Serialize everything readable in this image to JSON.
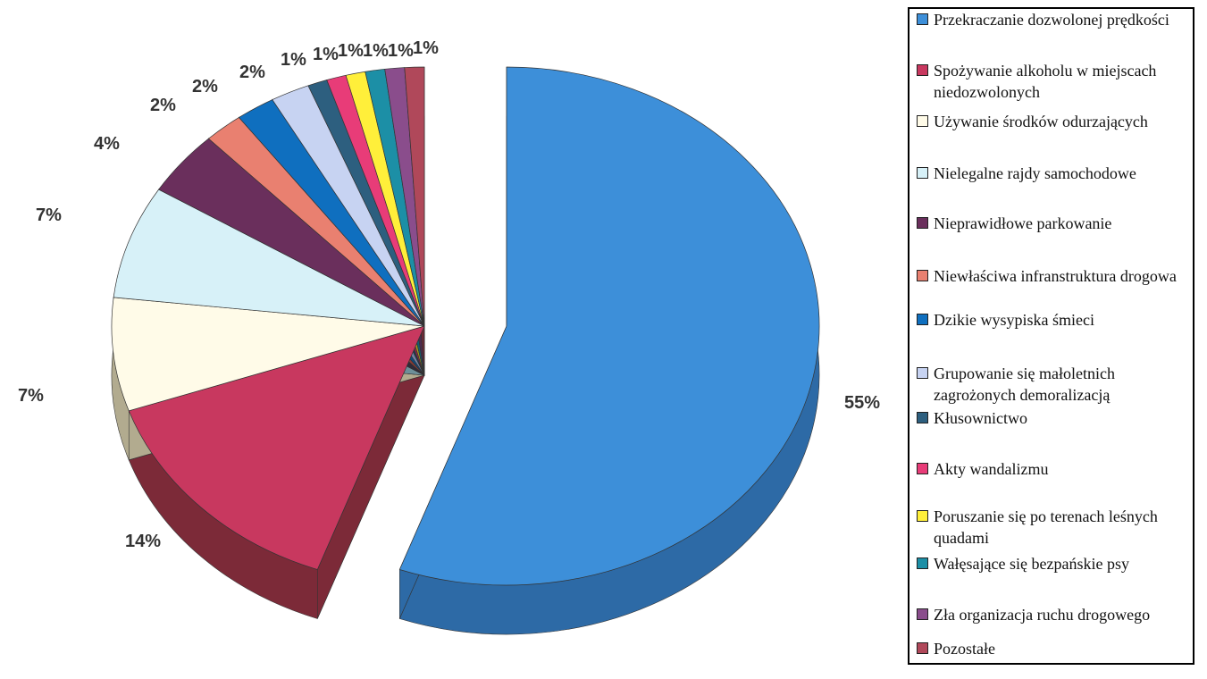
{
  "chart_data": {
    "type": "pie",
    "style": "3d-exploded",
    "legend_position": "right",
    "slices": [
      {
        "label": "Przekraczanie dozwolonej prędkości",
        "value": 55,
        "display": "55%",
        "color": "#3d8fd9",
        "side_color": "#2d6aa6"
      },
      {
        "label": "Spożywanie alkoholu w miejscach niedozwolonych",
        "value": 14,
        "display": "14%",
        "color": "#c8385f",
        "side_color": "#7c2a38"
      },
      {
        "label": "Używanie środków odurzających",
        "value": 7,
        "display": "7%",
        "color": "#fffbe8",
        "side_color": "#b2ab8f"
      },
      {
        "label": "Nielegalne rajdy samochodowe",
        "value": 7,
        "display": "7%",
        "color": "#d7f1f8",
        "side_color": "#6d9099"
      },
      {
        "label": "Nieprawidłowe parkowanie",
        "value": 4,
        "display": "4%",
        "color": "#6a2f5c",
        "side_color": "#2f2a38"
      },
      {
        "label": "Niewłaściwa infranstruktura drogowa",
        "value": 2,
        "display": "2%",
        "color": "#e98070",
        "side_color": "#8c3b34"
      },
      {
        "label": "Dzikie wysypiska śmieci",
        "value": 2,
        "display": "2%",
        "color": "#0f6fbf",
        "side_color": "#0d4a7c"
      },
      {
        "label": "Grupowanie się małoletnich zagrożonych demoralizacją",
        "value": 2,
        "display": "2%",
        "color": "#c7d3f2",
        "side_color": "#7482a3"
      },
      {
        "label": "Kłusownictwo",
        "value": 1,
        "display": "1%",
        "color": "#2d5f7f",
        "side_color": "#1b3b52"
      },
      {
        "label": "Akty wandalizmu",
        "value": 1,
        "display": "1%",
        "color": "#e83c78",
        "side_color": "#8f2349"
      },
      {
        "label": "Poruszanie się po terenach leśnych quadami",
        "value": 1,
        "display": "1%",
        "color": "#ffef3a",
        "side_color": "#a89a18"
      },
      {
        "label": "Wałęsające się bezpańskie psy",
        "value": 1,
        "display": "1%",
        "color": "#1c8fa6",
        "side_color": "#116070"
      },
      {
        "label": "Zła organizacja ruchu drogowego",
        "value": 1,
        "display": "1%",
        "color": "#8a4d8c",
        "side_color": "#4e2a50"
      },
      {
        "label": "Pozostałe",
        "value": 1,
        "display": "1%",
        "color": "#b0485a",
        "side_color": "#6e2a36"
      }
    ]
  }
}
